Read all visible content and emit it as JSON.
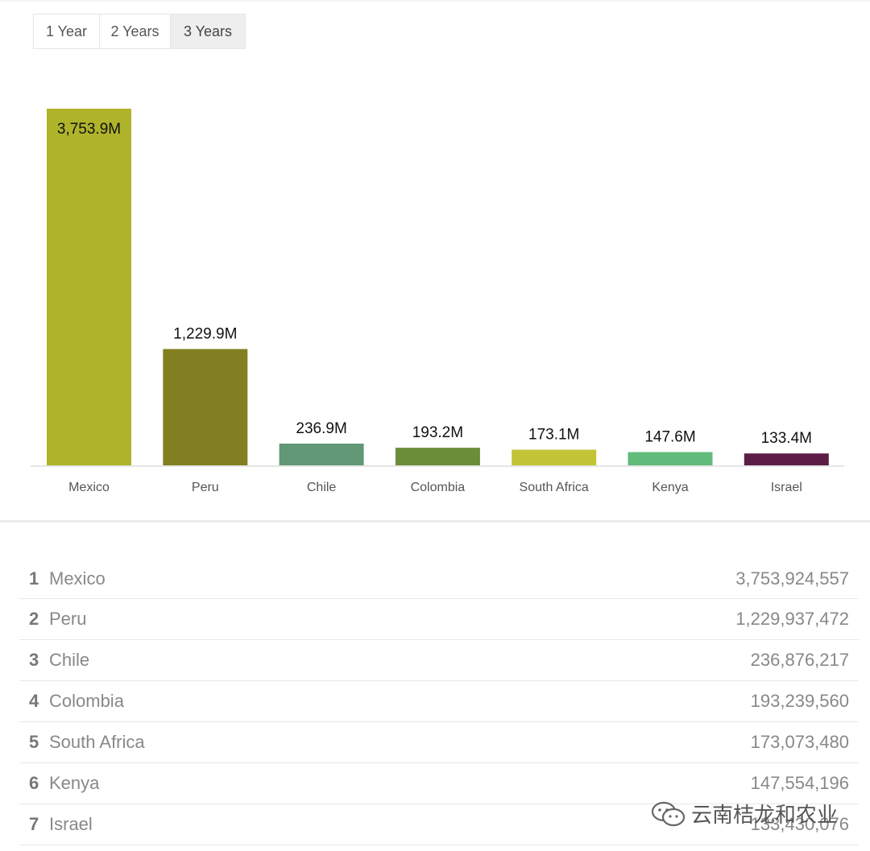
{
  "tabs": [
    "1 Year",
    "2 Years",
    "3 Years"
  ],
  "active_tab": "3 Years",
  "chart_data": {
    "type": "bar",
    "categories": [
      "Mexico",
      "Peru",
      "Chile",
      "Colombia",
      "South Africa",
      "Kenya",
      "Israel"
    ],
    "values": [
      3753.9,
      1229.9,
      236.9,
      193.2,
      173.1,
      147.6,
      133.4
    ],
    "value_labels": [
      "3,753.9M",
      "1,229.9M",
      "236.9M",
      "193.2M",
      "173.1M",
      "147.6M",
      "133.4M"
    ],
    "colors": [
      "#afb42b",
      "#827f22",
      "#629875",
      "#6a8d3a",
      "#c2c436",
      "#62bb7b",
      "#5c1e47"
    ],
    "title": "",
    "xlabel": "",
    "ylabel": "",
    "ylim": [
      0,
      3753.9
    ],
    "grid": false,
    "legend": "none"
  },
  "table": [
    {
      "rank": "1",
      "country": "Mexico",
      "value": "3,753,924,557"
    },
    {
      "rank": "2",
      "country": "Peru",
      "value": "1,229,937,472"
    },
    {
      "rank": "3",
      "country": "Chile",
      "value": "236,876,217"
    },
    {
      "rank": "4",
      "country": "Colombia",
      "value": "193,239,560"
    },
    {
      "rank": "5",
      "country": "South Africa",
      "value": "173,073,480"
    },
    {
      "rank": "6",
      "country": "Kenya",
      "value": "147,554,196"
    },
    {
      "rank": "7",
      "country": "Israel",
      "value": "133,430,076"
    }
  ],
  "watermark": {
    "text": "云南桔龙和农业",
    "icon": "wechat-icon"
  }
}
